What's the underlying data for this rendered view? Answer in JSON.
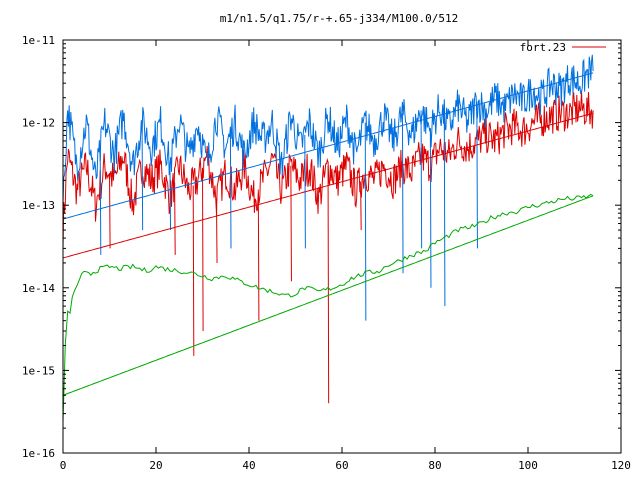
{
  "chart_data": {
    "type": "line",
    "title": "m1/n1.5/q1.75/r-+.65-j334/M100.0/512",
    "xlabel": "",
    "ylabel": "",
    "xlim": [
      0,
      120
    ],
    "ylim": [
      1e-16,
      1e-11
    ],
    "yscale": "log",
    "grid": false,
    "legend": {
      "placement": "top-right",
      "entries": [
        "fort.23"
      ]
    },
    "x_ticks": [
      {
        "value": 0,
        "label": "0"
      },
      {
        "value": 20,
        "label": "20"
      },
      {
        "value": 40,
        "label": "40"
      },
      {
        "value": 60,
        "label": "60"
      },
      {
        "value": 80,
        "label": "80"
      },
      {
        "value": 100,
        "label": "100"
      },
      {
        "value": 120,
        "label": "120"
      }
    ],
    "y_ticks": [
      {
        "value": 1e-16,
        "label": "1e-16"
      },
      {
        "value": 1e-15,
        "label": "1e-15"
      },
      {
        "value": 1e-14,
        "label": "1e-14"
      },
      {
        "value": 1e-13,
        "label": "1e-13"
      },
      {
        "value": 1e-12,
        "label": "1e-12"
      },
      {
        "value": 1e-11,
        "label": "1e-11"
      }
    ],
    "series": [
      {
        "name": "fort.23",
        "color": "#dd0000",
        "noisy": true,
        "x": [
          0,
          1,
          3,
          5,
          7,
          9,
          11,
          13,
          15,
          17,
          19,
          21,
          23,
          25,
          27,
          29,
          31,
          33,
          35,
          37,
          39,
          41,
          43,
          45,
          47,
          49,
          51,
          53,
          55,
          57,
          59,
          61,
          63,
          65,
          67,
          69,
          71,
          73,
          75,
          77,
          79,
          81,
          83,
          85,
          87,
          89,
          91,
          93,
          95,
          97,
          99,
          101,
          103,
          105,
          107,
          109,
          111,
          113,
          114
        ],
        "y": [
          5e-14,
          4e-13,
          1.5e-13,
          3e-13,
          1e-13,
          3e-13,
          2e-13,
          4e-13,
          1e-13,
          3e-13,
          2e-13,
          3e-13,
          1.2e-13,
          3e-13,
          1.5e-13,
          2e-13,
          4e-13,
          1.2e-13,
          2.5e-13,
          1.5e-13,
          3e-13,
          1.2e-13,
          2e-13,
          3.5e-13,
          1.5e-13,
          3e-13,
          2e-13,
          3e-13,
          1.2e-13,
          3e-13,
          2e-13,
          3e-13,
          1.5e-13,
          2.5e-13,
          2e-13,
          3e-13,
          2e-13,
          3e-13,
          2.5e-13,
          4e-13,
          3e-13,
          5e-13,
          4e-13,
          6e-13,
          5e-13,
          6e-13,
          7e-13,
          6e-13,
          8e-13,
          9e-13,
          8e-13,
          1e-12,
          1.1e-12,
          1.2e-12,
          1.3e-12,
          1.3e-12,
          1.5e-12,
          1.4e-12,
          1.4e-12
        ],
        "dips": [
          [
            28,
            1.5e-15
          ],
          [
            30,
            3e-15
          ],
          [
            42,
            4e-15
          ],
          [
            57,
            4e-16
          ],
          [
            49,
            1.2e-14
          ],
          [
            24,
            2.5e-14
          ],
          [
            10,
            3e-14
          ],
          [
            33,
            2e-14
          ],
          [
            64,
            5e-14
          ]
        ]
      },
      {
        "name": "",
        "color": "#0070e0",
        "noisy": true,
        "x": [
          0,
          1,
          3,
          5,
          7,
          9,
          11,
          13,
          15,
          17,
          19,
          21,
          23,
          25,
          27,
          29,
          31,
          33,
          35,
          37,
          39,
          41,
          43,
          45,
          47,
          49,
          51,
          53,
          55,
          57,
          59,
          61,
          63,
          65,
          67,
          69,
          71,
          73,
          75,
          77,
          79,
          81,
          83,
          85,
          87,
          89,
          91,
          93,
          95,
          97,
          99,
          101,
          103,
          105,
          107,
          109,
          111,
          113,
          114
        ],
        "y": [
          1e-13,
          1.5e-12,
          3e-13,
          1e-12,
          2e-13,
          1e-12,
          4e-13,
          1.2e-12,
          3e-13,
          1e-12,
          5e-13,
          1e-12,
          3e-13,
          1.1e-12,
          4e-13,
          1e-12,
          3e-13,
          1.2e-12,
          5e-13,
          1e-12,
          4e-13,
          1e-12,
          6e-13,
          1e-12,
          3e-13,
          1.2e-12,
          5e-13,
          1e-12,
          4e-13,
          1.2e-12,
          5e-13,
          1.1e-12,
          4e-13,
          1e-12,
          6e-13,
          1.2e-12,
          6e-13,
          1.3e-12,
          7e-13,
          1.4e-12,
          8e-13,
          1.5e-12,
          9e-13,
          1.6e-12,
          1e-12,
          1.8e-12,
          1.4e-12,
          2e-12,
          1.5e-12,
          2.2e-12,
          1.8e-12,
          2.5e-12,
          2e-12,
          3e-12,
          2.5e-12,
          3.5e-12,
          3e-12,
          4e-12,
          4.2e-12
        ],
        "dips": [
          [
            8,
            2.5e-14
          ],
          [
            17,
            5e-14
          ],
          [
            23,
            5e-14
          ],
          [
            36,
            3e-14
          ],
          [
            52,
            3e-14
          ],
          [
            65,
            4e-15
          ],
          [
            73,
            1.5e-14
          ],
          [
            77,
            3e-14
          ],
          [
            79,
            1e-14
          ],
          [
            82,
            6e-15
          ],
          [
            89,
            3e-14
          ]
        ]
      },
      {
        "name": "",
        "color": "#00aa00",
        "noisy": false,
        "x": [
          0,
          0.5,
          1,
          1.5,
          2,
          3,
          4,
          5,
          6,
          8,
          10,
          12,
          15,
          18,
          20,
          22,
          25,
          28,
          30,
          32,
          35,
          38,
          40,
          42,
          45,
          48,
          50,
          52,
          55,
          58,
          60,
          62,
          65,
          68,
          70,
          72,
          75,
          78,
          80,
          82,
          85,
          88,
          90,
          92,
          95,
          98,
          100,
          102,
          105,
          108,
          110,
          112,
          114
        ],
        "y": [
          2.5e-16,
          2e-15,
          5e-15,
          5e-15,
          8e-15,
          1e-14,
          1.4e-14,
          1.6e-14,
          1.5e-14,
          1.7e-14,
          1.8e-14,
          1.7e-14,
          1.8e-14,
          1.6e-14,
          1.8e-14,
          1.7e-14,
          1.6e-14,
          1.5e-14,
          1.4e-14,
          1.3e-14,
          1.4e-14,
          1.2e-14,
          1.1e-14,
          1e-14,
          9e-15,
          8e-15,
          8.5e-15,
          1e-14,
          9e-15,
          1e-14,
          1.1e-14,
          1.3e-14,
          1.5e-14,
          1.6e-14,
          1.9e-14,
          2.1e-14,
          2.5e-14,
          2.8e-14,
          3.5e-14,
          4e-14,
          5e-14,
          5.5e-14,
          6e-14,
          7e-14,
          8e-14,
          8.5e-14,
          9.5e-14,
          1e-13,
          1.1e-13,
          1.2e-13,
          1.2e-13,
          1.25e-13,
          1.3e-13
        ]
      },
      {
        "name": "",
        "color": "#dd0000",
        "noisy": false,
        "x": [
          0,
          114
        ],
        "y": [
          2.3e-14,
          1.3e-12
        ]
      },
      {
        "name": "",
        "color": "#0070e0",
        "noisy": false,
        "x": [
          0,
          114
        ],
        "y": [
          6.8e-14,
          4e-12
        ]
      },
      {
        "name": "",
        "color": "#00aa00",
        "noisy": false,
        "x": [
          0,
          114
        ],
        "y": [
          5e-16,
          1.3e-13
        ]
      }
    ]
  }
}
